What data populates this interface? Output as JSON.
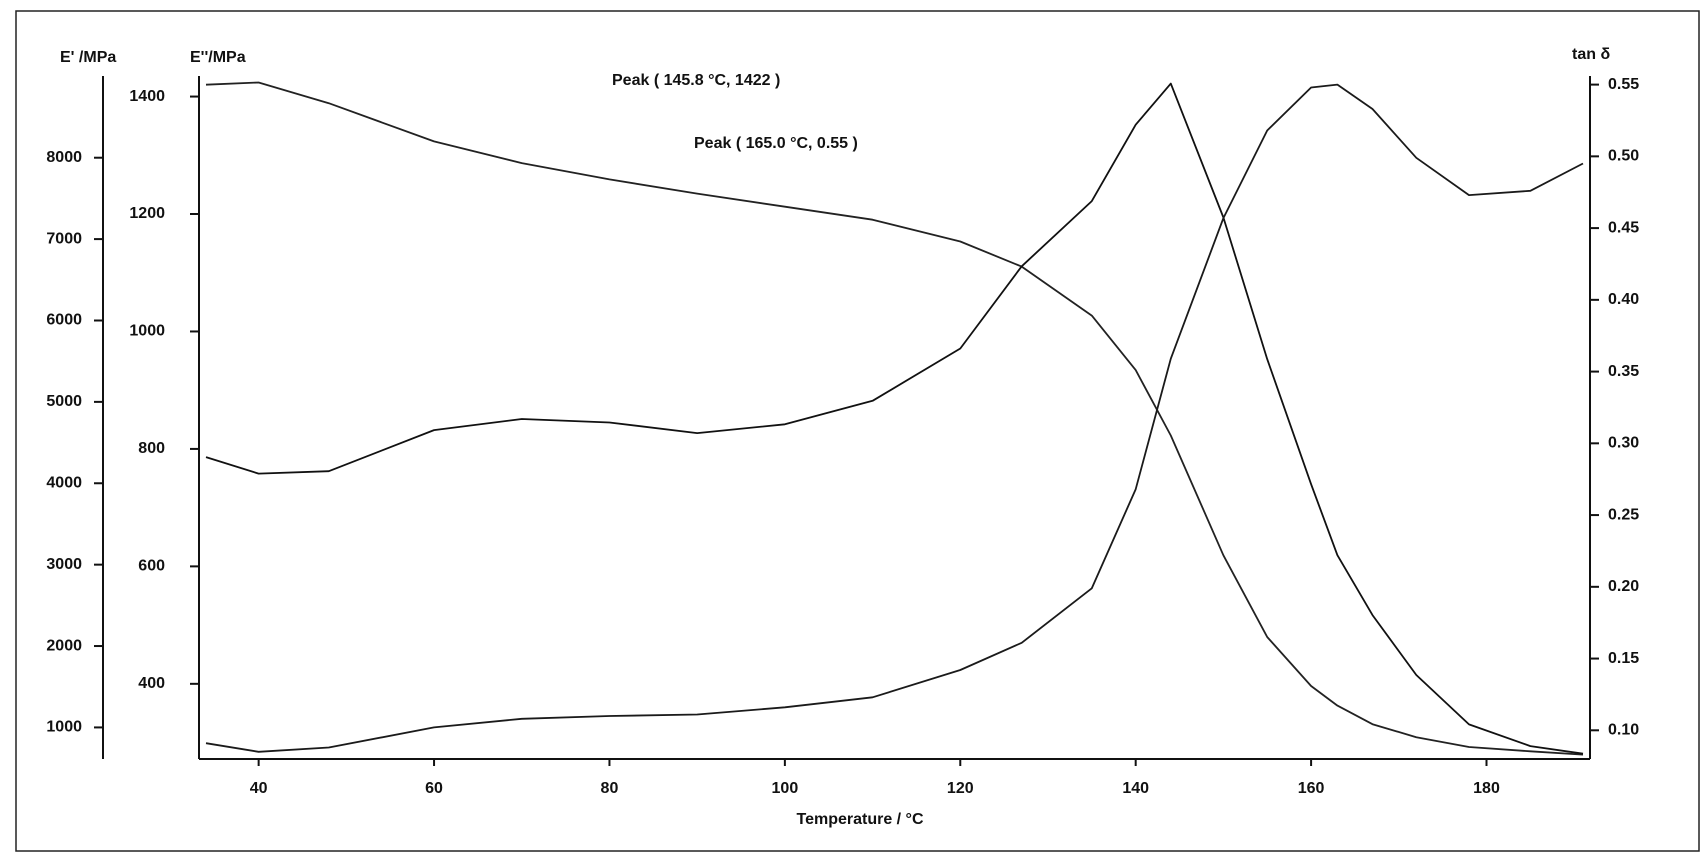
{
  "chart_data": {
    "type": "line",
    "xlabel": "Temperature / °C",
    "ylabel": "E' /MPa",
    "y3label": "E''/MPa",
    "y2label": "tan δ",
    "annotations": [
      "Peak ( 145.8  °C,  1422 )",
      "Peak ( 165.0  °C, 0.55 )"
    ],
    "x": [
      34,
      40,
      48,
      60,
      70,
      80,
      90,
      100,
      110,
      120,
      127,
      135,
      140,
      144,
      150,
      155,
      160,
      163,
      167,
      172,
      178,
      185,
      191
    ],
    "xlim": [
      33.2,
      191.8
    ],
    "xticks": [
      40,
      60,
      80,
      100,
      120,
      140,
      160,
      180
    ],
    "ylim": [
      612,
      9004
    ],
    "yticks": [
      1000,
      2000,
      3000,
      4000,
      5000,
      6000,
      7000,
      8000
    ],
    "y3lim": [
      272,
      1435
    ],
    "y3ticks": [
      400,
      600,
      800,
      1000,
      1200,
      1400
    ],
    "y2lim": [
      0.08,
      0.556
    ],
    "y2ticks": [
      {
        "value": 0.1,
        "label": "0.10"
      },
      0.15,
      {
        "value": 0.2,
        "label": "0.20"
      },
      0.25,
      {
        "value": 0.3,
        "label": "0.30"
      },
      0.35,
      {
        "value": 0.4,
        "label": "0.40"
      },
      0.45,
      {
        "value": 0.5,
        "label": "0.50"
      },
      0.55
    ],
    "series": [
      {
        "axis": "y",
        "color": "#222222",
        "values": [
          8897,
          8924,
          8670,
          8201,
          7934,
          7733,
          7559,
          7398,
          7238,
          6970,
          6662,
          6060,
          5390,
          4587,
          3115,
          2111,
          1509,
          1268,
          1040,
          880,
          759,
          706,
          666
        ]
      },
      {
        "axis": "y3",
        "color": "#111111",
        "values": [
          786,
          758,
          762,
          832,
          851,
          845,
          827,
          842,
          882,
          971,
          1111,
          1222,
          1352,
          1422,
          1194,
          953,
          740,
          619,
          517,
          415,
          331,
          294,
          281
        ]
      },
      {
        "axis": "y2",
        "color": "#1a1a1a",
        "values": [
          0.091,
          0.085,
          0.088,
          0.102,
          0.108,
          0.11,
          0.111,
          0.116,
          0.123,
          0.142,
          0.161,
          0.199,
          0.268,
          0.359,
          0.457,
          0.518,
          0.548,
          0.55,
          0.533,
          0.499,
          0.473,
          0.476,
          0.495
        ]
      }
    ]
  }
}
